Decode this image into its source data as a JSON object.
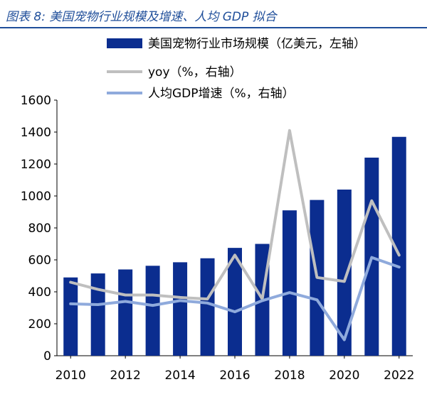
{
  "figure": {
    "title": "图表 8:  美国宠物行业规模及增速、人均 GDP 拟合"
  },
  "chart_data": {
    "type": "bar",
    "categories": [
      "2010",
      "2011",
      "2012",
      "2013",
      "2014",
      "2015",
      "2016",
      "2017",
      "2018",
      "2019",
      "2020",
      "2021",
      "2022"
    ],
    "x_tick_labels": [
      "2010",
      "2012",
      "2014",
      "2016",
      "2018",
      "2020",
      "2022"
    ],
    "left_axis": {
      "ylim": [
        0,
        1600
      ],
      "ticks": [
        0,
        200,
        400,
        600,
        800,
        1000,
        1200,
        1400,
        1600
      ]
    },
    "legend_placement": "top",
    "grid": false,
    "series": [
      {
        "name": "美国宠物行业市场规模（亿美元，左轴）",
        "type": "bar",
        "axis": "left",
        "color": "#0b2d8f",
        "values": [
          490,
          515,
          540,
          563,
          585,
          610,
          675,
          700,
          910,
          975,
          1040,
          1240,
          1370
        ]
      },
      {
        "name": "yoy（%，右轴）",
        "type": "line",
        "axis": "right",
        "color": "#bfbfbf",
        "values_in_left_axis_units": [
          460,
          415,
          380,
          380,
          365,
          355,
          630,
          355,
          1410,
          490,
          465,
          970,
          630
        ]
      },
      {
        "name": "人均GDP增速（%，右轴）",
        "type": "line",
        "axis": "right",
        "color": "#8faadc",
        "values_in_left_axis_units": [
          325,
          320,
          340,
          315,
          345,
          330,
          275,
          345,
          395,
          350,
          100,
          615,
          555
        ]
      }
    ]
  }
}
